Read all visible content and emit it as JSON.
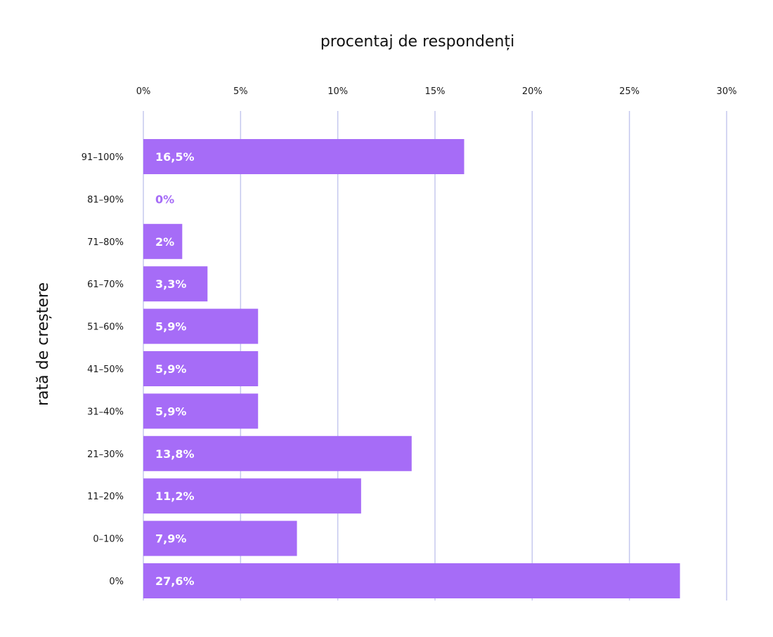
{
  "chart_data": {
    "type": "bar",
    "orientation": "horizontal",
    "xlabel": "procentaj de respondenți",
    "ylabel": "rată de creștere",
    "xlim": [
      0,
      30
    ],
    "x_ticks": [
      "0%",
      "5%",
      "10%",
      "15%",
      "20%",
      "25%",
      "30%"
    ],
    "x_tick_values": [
      0,
      5,
      10,
      15,
      20,
      25,
      30
    ],
    "x_axis_position": "top",
    "grid": "vertical",
    "categories": [
      "91–100%",
      "81–90%",
      "71–80%",
      "61–70%",
      "51–60%",
      "41–50%",
      "31–40%",
      "21–30%",
      "11–20%",
      "0–10%",
      "0%"
    ],
    "values": [
      16.5,
      0,
      2,
      3.3,
      5.9,
      5.9,
      5.9,
      13.8,
      11.2,
      7.9,
      27.6
    ],
    "value_labels": [
      "16,5%",
      "0%",
      "2%",
      "3,3%",
      "5,9%",
      "5,9%",
      "5,9%",
      "13,8%",
      "11,2%",
      "7,9%",
      "27,6%"
    ],
    "bar_color": "#a66cf7",
    "grid_color": "#c5c8ee",
    "label_color_inside": "#ffffff",
    "label_color_outside": "#a66cf7"
  }
}
